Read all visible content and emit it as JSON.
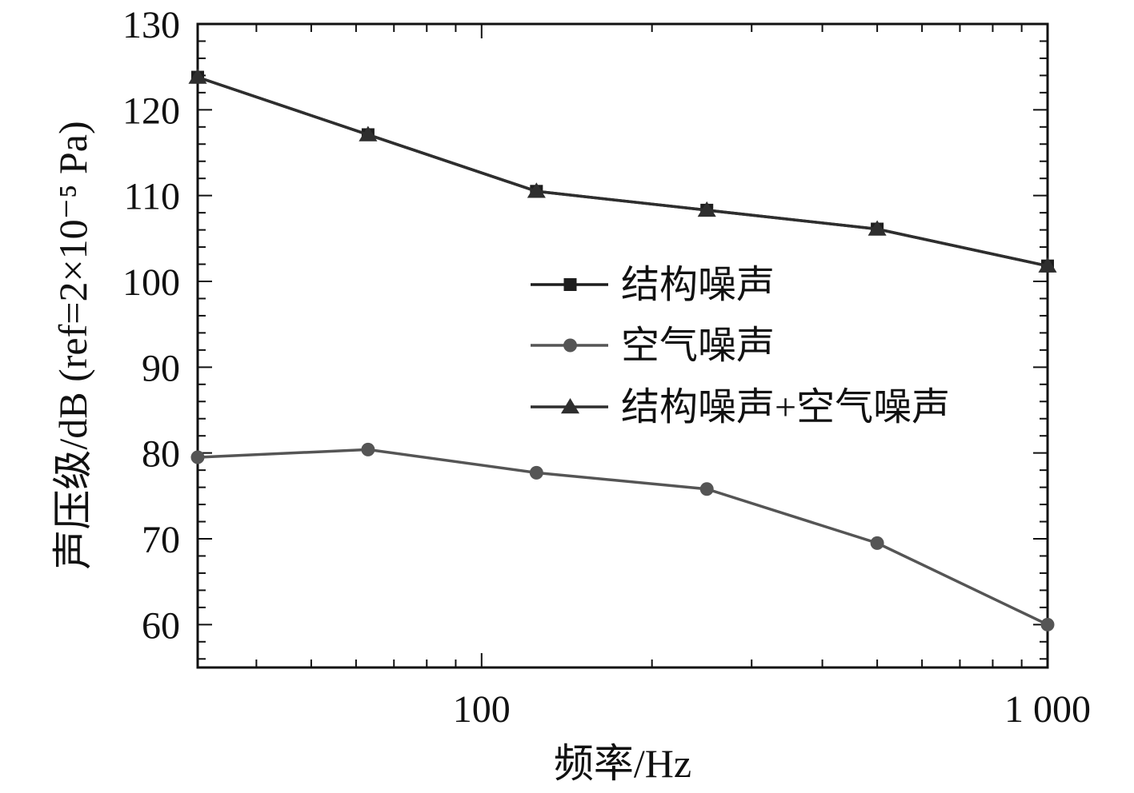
{
  "chart_data": {
    "type": "line",
    "x": [
      31.5,
      63,
      125,
      250,
      500,
      1000
    ],
    "xscale": "log",
    "xlim": [
      31.5,
      1000
    ],
    "ylim": [
      55,
      130
    ],
    "xlabel": "频率/Hz",
    "ylabel": "声压级/dB (ref=2×10⁻⁵ Pa)",
    "xticks": [
      100,
      1000
    ],
    "xtick_labels": [
      "100",
      "1 000"
    ],
    "yticks": [
      60,
      70,
      80,
      90,
      100,
      110,
      120,
      130
    ],
    "ytick_labels": [
      "60",
      "70",
      "80",
      "90",
      "100",
      "110",
      "120",
      "130"
    ],
    "grid": false,
    "legend_position": "center-right",
    "series": [
      {
        "name": "结构噪声",
        "marker": "square",
        "color": "#1e1e1e",
        "values": [
          123.8,
          117.1,
          110.5,
          108.3,
          106.1,
          101.8
        ]
      },
      {
        "name": "空气噪声",
        "marker": "circle",
        "color": "#555555",
        "values": [
          79.5,
          80.4,
          77.7,
          75.8,
          69.5,
          60.0
        ]
      },
      {
        "name": "结构噪声+空气噪声",
        "marker": "triangle",
        "color": "#2e2e2e",
        "values": [
          123.8,
          117.1,
          110.5,
          108.3,
          106.1,
          101.8
        ]
      }
    ]
  }
}
